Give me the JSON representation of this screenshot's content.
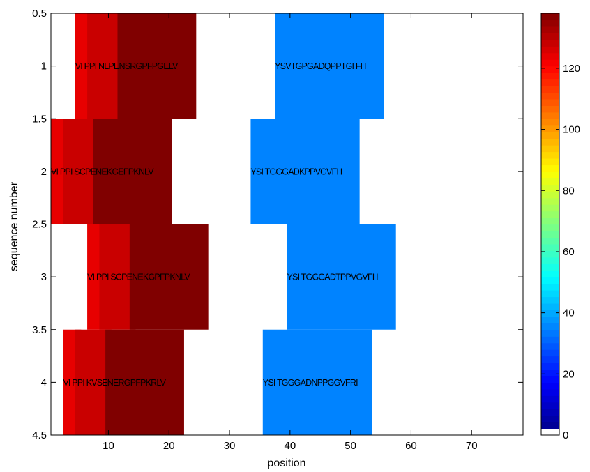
{
  "chart_data": {
    "type": "heatmap",
    "xlabel": "position",
    "ylabel": "sequence number",
    "xlim": [
      0.5,
      78.5
    ],
    "ylim": [
      0.5,
      4.5
    ],
    "y_reversed": true,
    "xticks": [
      10,
      20,
      30,
      40,
      50,
      60,
      70
    ],
    "yticks": [
      0.5,
      1,
      1.5,
      2,
      2.5,
      3,
      3.5,
      4,
      4.5
    ],
    "colormap": "jet",
    "colorbar": {
      "min": 0,
      "max": 138,
      "ticks": [
        0,
        20,
        40,
        60,
        80,
        100,
        120
      ],
      "zero_color": "#ffffff",
      "placement": "right"
    },
    "grid": false,
    "rows": [
      {
        "sequence": 1,
        "label_position": 5,
        "label": "VI PPI NLPENSRGPFPGELV",
        "segments": [
          {
            "x_start": 5,
            "x_end": 7,
            "value": 124
          },
          {
            "x_start": 7,
            "x_end": 12,
            "value": 128
          },
          {
            "x_start": 12,
            "x_end": 24,
            "value": 138
          }
        ],
        "motif": {
          "x_start": 38,
          "x_end": 55,
          "value": 35,
          "label_position": 38,
          "label": "YSVTGPGADQPPTGI FI I"
        }
      },
      {
        "sequence": 2,
        "label_position": 1,
        "label": "VI PPI SCPENEKGEFPKNLV",
        "segments": [
          {
            "x_start": 1,
            "x_end": 3,
            "value": 124
          },
          {
            "x_start": 3,
            "x_end": 8,
            "value": 128
          },
          {
            "x_start": 8,
            "x_end": 20,
            "value": 138
          }
        ],
        "motif": {
          "x_start": 34,
          "x_end": 51,
          "value": 35,
          "label_position": 34,
          "label": "YSI TGGGADKPPVGVFI I"
        }
      },
      {
        "sequence": 3,
        "label_position": 7,
        "label": "VI PPI SCPENEKGPFPKNLV",
        "segments": [
          {
            "x_start": 7,
            "x_end": 9,
            "value": 124
          },
          {
            "x_start": 9,
            "x_end": 14,
            "value": 128
          },
          {
            "x_start": 14,
            "x_end": 26,
            "value": 138
          }
        ],
        "motif": {
          "x_start": 40,
          "x_end": 57,
          "value": 35,
          "label_position": 40,
          "label": "YSI TGGGADTPPVGVFI I"
        }
      },
      {
        "sequence": 4,
        "label_position": 3,
        "label": "VI PPI KVSENERGPFPKRLV",
        "segments": [
          {
            "x_start": 3,
            "x_end": 5,
            "value": 124
          },
          {
            "x_start": 5,
            "x_end": 10,
            "value": 128
          },
          {
            "x_start": 10,
            "x_end": 22,
            "value": 138
          }
        ],
        "motif": {
          "x_start": 36,
          "x_end": 53,
          "value": 35,
          "label_position": 36,
          "label": "YSI TGGGADNPPGGVFRI"
        }
      }
    ]
  }
}
